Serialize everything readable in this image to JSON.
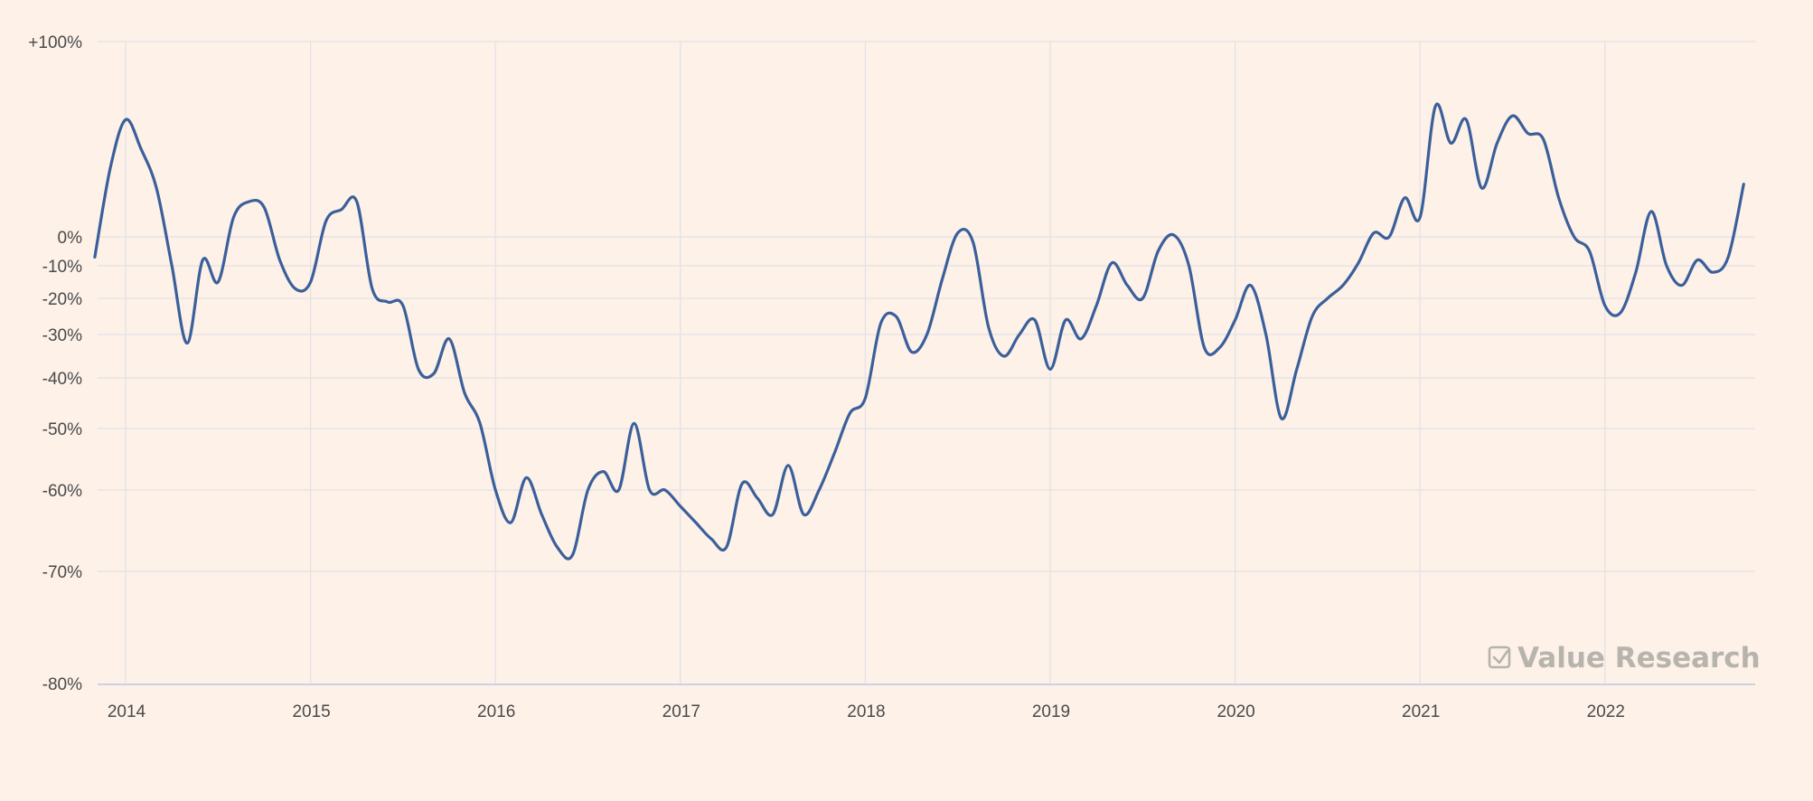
{
  "chart_data": {
    "type": "line",
    "title": "",
    "xlabel": "",
    "ylabel": "",
    "ylim": [
      -80,
      100
    ],
    "xlim": [
      "2013-11",
      "2022-10"
    ],
    "y_ticks": [
      {
        "value": 100,
        "label": "+100%"
      },
      {
        "value": 0,
        "label": "0%"
      },
      {
        "value": -10,
        "label": "-10%"
      },
      {
        "value": -20,
        "label": "-20%"
      },
      {
        "value": -30,
        "label": "-30%"
      },
      {
        "value": -40,
        "label": "-40%"
      },
      {
        "value": -50,
        "label": "-50%"
      },
      {
        "value": -60,
        "label": "-60%"
      },
      {
        "value": -70,
        "label": "-70%"
      },
      {
        "value": -80,
        "label": "-80%"
      }
    ],
    "x_ticks": [
      "2014",
      "2015",
      "2016",
      "2017",
      "2018",
      "2019",
      "2020",
      "2021",
      "2022"
    ],
    "grid": true,
    "legend": "none",
    "series": [
      {
        "color": "#3b5f9a",
        "points": [
          [
            "2013-11",
            -7
          ],
          [
            "2013-12",
            35
          ],
          [
            "2014-01",
            60
          ],
          [
            "2014-02",
            45
          ],
          [
            "2014-03",
            25
          ],
          [
            "2014-04",
            -10
          ],
          [
            "2014-05",
            -32
          ],
          [
            "2014-06",
            -8
          ],
          [
            "2014-07",
            -15
          ],
          [
            "2014-08",
            10
          ],
          [
            "2014-09",
            18
          ],
          [
            "2014-10",
            15
          ],
          [
            "2014-11",
            -8
          ],
          [
            "2014-12",
            -17
          ],
          [
            "2015-01",
            -15
          ],
          [
            "2015-02",
            8
          ],
          [
            "2015-03",
            14
          ],
          [
            "2015-04",
            18
          ],
          [
            "2015-05",
            -17
          ],
          [
            "2015-06",
            -21
          ],
          [
            "2015-07",
            -22
          ],
          [
            "2015-08",
            -38
          ],
          [
            "2015-09",
            -39
          ],
          [
            "2015-10",
            -31
          ],
          [
            "2015-11",
            -43
          ],
          [
            "2015-12",
            -49
          ],
          [
            "2016-01",
            -60
          ],
          [
            "2016-02",
            -64
          ],
          [
            "2016-03",
            -58
          ],
          [
            "2016-04",
            -63
          ],
          [
            "2016-05",
            -67
          ],
          [
            "2016-06",
            -68
          ],
          [
            "2016-07",
            -60
          ],
          [
            "2016-08",
            -57
          ],
          [
            "2016-09",
            -60
          ],
          [
            "2016-10",
            -49
          ],
          [
            "2016-11",
            -60
          ],
          [
            "2016-12",
            -60
          ],
          [
            "2017-01",
            -62
          ],
          [
            "2017-02",
            -64
          ],
          [
            "2017-03",
            -66
          ],
          [
            "2017-04",
            -67
          ],
          [
            "2017-05",
            -59
          ],
          [
            "2017-06",
            -61
          ],
          [
            "2017-07",
            -63
          ],
          [
            "2017-08",
            -56
          ],
          [
            "2017-09",
            -63
          ],
          [
            "2017-10",
            -60
          ],
          [
            "2017-11",
            -54
          ],
          [
            "2017-12",
            -47
          ],
          [
            "2018-01",
            -44
          ],
          [
            "2018-02",
            -27
          ],
          [
            "2018-03",
            -25
          ],
          [
            "2018-04",
            -34
          ],
          [
            "2018-05",
            -30
          ],
          [
            "2018-06",
            -14
          ],
          [
            "2018-07",
            2
          ],
          [
            "2018-08",
            -2
          ],
          [
            "2018-09",
            -28
          ],
          [
            "2018-10",
            -35
          ],
          [
            "2018-11",
            -30
          ],
          [
            "2018-12",
            -26
          ],
          [
            "2019-01",
            -38
          ],
          [
            "2019-02",
            -26
          ],
          [
            "2019-03",
            -31
          ],
          [
            "2019-04",
            -22
          ],
          [
            "2019-05",
            -9
          ],
          [
            "2019-06",
            -16
          ],
          [
            "2019-07",
            -20
          ],
          [
            "2019-08",
            -5
          ],
          [
            "2019-09",
            1
          ],
          [
            "2019-10",
            -10
          ],
          [
            "2019-11",
            -33
          ],
          [
            "2019-12",
            -33
          ],
          [
            "2020-01",
            -26
          ],
          [
            "2020-02",
            -16
          ],
          [
            "2020-03",
            -30
          ],
          [
            "2020-04",
            -48
          ],
          [
            "2020-05",
            -38
          ],
          [
            "2020-06",
            -25
          ],
          [
            "2020-07",
            -20
          ],
          [
            "2020-08",
            -16
          ],
          [
            "2020-09",
            -9
          ],
          [
            "2020-10",
            2
          ],
          [
            "2020-11",
            0
          ],
          [
            "2020-12",
            20
          ],
          [
            "2021-01",
            10
          ],
          [
            "2021-02",
            67
          ],
          [
            "2021-03",
            48
          ],
          [
            "2021-04",
            60
          ],
          [
            "2021-05",
            25
          ],
          [
            "2021-06",
            48
          ],
          [
            "2021-07",
            62
          ],
          [
            "2021-08",
            53
          ],
          [
            "2021-09",
            50
          ],
          [
            "2021-10",
            20
          ],
          [
            "2021-11",
            0
          ],
          [
            "2021-12",
            -5
          ],
          [
            "2022-01",
            -22
          ],
          [
            "2022-02",
            -24
          ],
          [
            "2022-03",
            -12
          ],
          [
            "2022-04",
            13
          ],
          [
            "2022-05",
            -10
          ],
          [
            "2022-06",
            -16
          ],
          [
            "2022-07",
            -8
          ],
          [
            "2022-08",
            -12
          ],
          [
            "2022-09",
            -7
          ],
          [
            "2022-10",
            27
          ]
        ]
      }
    ]
  },
  "watermark": {
    "text": "Value Research",
    "icon": "checkbox-icon",
    "color": "#b7b3ad"
  }
}
